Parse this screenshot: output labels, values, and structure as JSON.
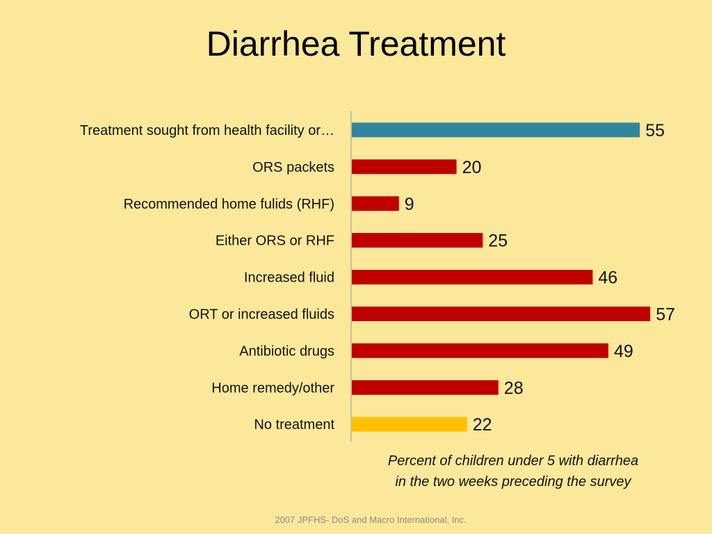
{
  "slide": {
    "title": "Diarrhea Treatment",
    "caption_line1": "Percent of children under 5 with diarrhea",
    "caption_line2": "in the two weeks preceding the survey",
    "footer": "2007 JPFHS- DoS and Macro International, Inc."
  },
  "chart_data": {
    "type": "bar",
    "orientation": "horizontal",
    "categories": [
      "Treatment sought from health facility or…",
      "ORS packets",
      "Recommended home fulids (RHF)",
      "Either ORS or RHF",
      "Increased fluid",
      "ORT or increased fluids",
      "Antibiotic drugs",
      "Home remedy/other",
      "No treatment"
    ],
    "values": [
      55,
      20,
      9,
      25,
      46,
      57,
      49,
      28,
      22
    ],
    "bar_colors": [
      "#31859C",
      "#C00000",
      "#C00000",
      "#C00000",
      "#C00000",
      "#C00000",
      "#C00000",
      "#C00000",
      "#FFC000"
    ],
    "data_labels": true,
    "grid": false,
    "xlabel": "",
    "ylabel": ""
  }
}
